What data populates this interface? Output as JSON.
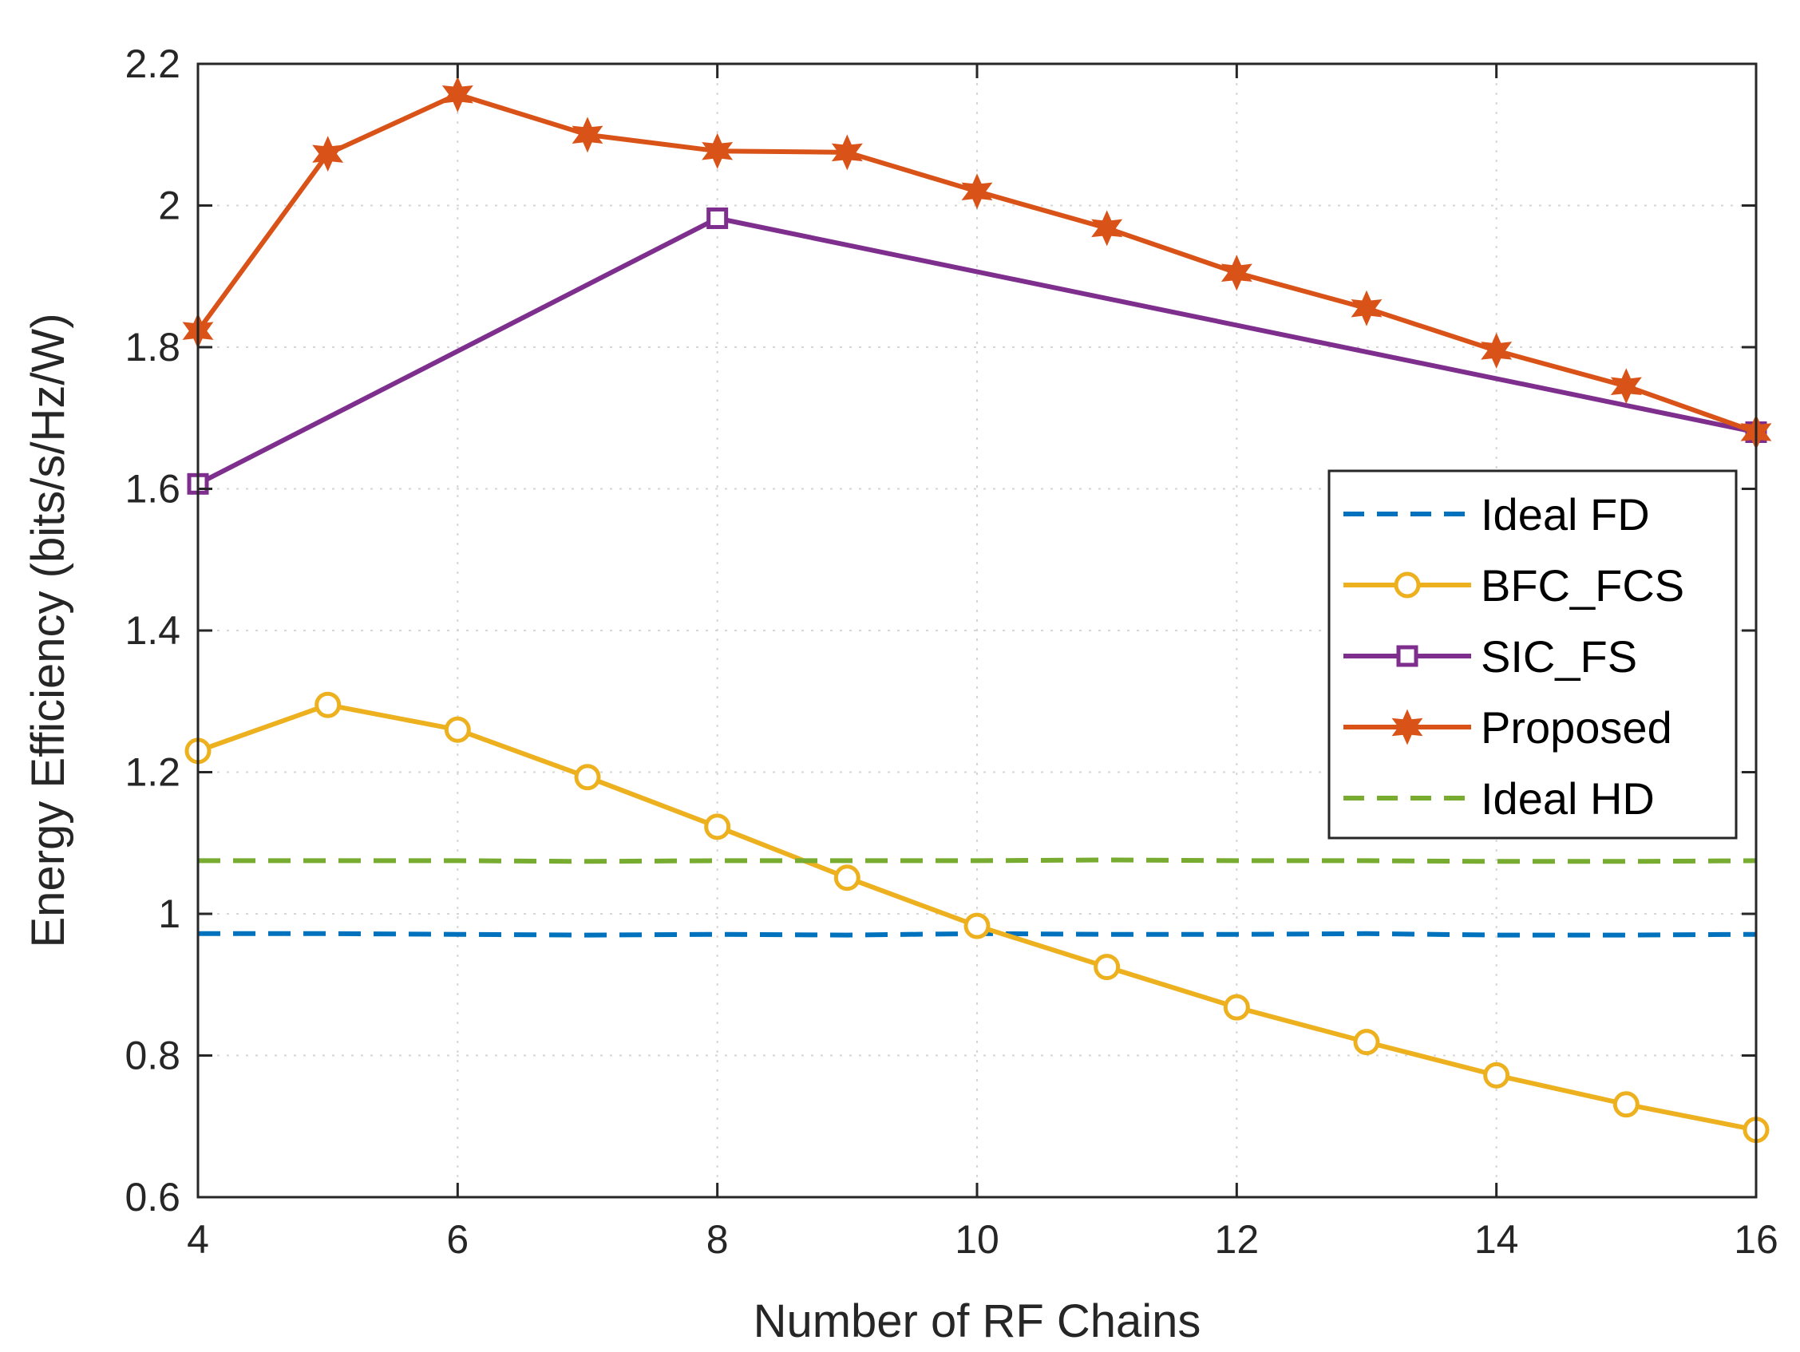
{
  "chart_data": {
    "type": "line",
    "title": "",
    "xlabel": "Number of RF Chains",
    "ylabel": "Energy Efficiency (bits/s/Hz/W)",
    "xlim": [
      4,
      16
    ],
    "ylim": [
      0.6,
      2.2
    ],
    "xticks": [
      4,
      6,
      8,
      10,
      12,
      14,
      16
    ],
    "yticks": [
      0.6,
      0.8,
      1,
      1.2,
      1.4,
      1.6,
      1.8,
      2,
      2.2
    ],
    "xtick_labels": [
      "4",
      "6",
      "8",
      "10",
      "12",
      "14",
      "16"
    ],
    "ytick_labels": [
      "0.6",
      "0.8",
      "1",
      "1.2",
      "1.4",
      "1.6",
      "1.8",
      "2",
      "2.2"
    ],
    "grid": true,
    "legend_position": "center-right",
    "series": [
      {
        "name": "Ideal FD",
        "color": "#0072BD",
        "style": "dashed",
        "marker": "none",
        "x": [
          4,
          5,
          6,
          7,
          8,
          9,
          10,
          11,
          12,
          13,
          14,
          15,
          16
        ],
        "values": [
          0.972,
          0.972,
          0.971,
          0.97,
          0.971,
          0.97,
          0.972,
          0.971,
          0.971,
          0.972,
          0.97,
          0.97,
          0.971
        ]
      },
      {
        "name": "BFC_FCS",
        "color": "#EDB120",
        "style": "solid",
        "marker": "circle",
        "x": [
          4,
          5,
          6,
          7,
          8,
          9,
          10,
          11,
          12,
          13,
          14,
          15,
          16
        ],
        "values": [
          1.23,
          1.295,
          1.26,
          1.193,
          1.123,
          1.051,
          0.983,
          0.925,
          0.868,
          0.819,
          0.772,
          0.731,
          0.695
        ]
      },
      {
        "name": "SIC_FS",
        "color": "#7E2F8E",
        "style": "solid",
        "marker": "square",
        "x": [
          4,
          8,
          16
        ],
        "values": [
          1.607,
          1.982,
          1.68
        ]
      },
      {
        "name": "Proposed",
        "color": "#D95319",
        "style": "solid",
        "marker": "hexagram",
        "x": [
          4,
          5,
          6,
          7,
          8,
          9,
          10,
          11,
          12,
          13,
          14,
          15,
          16
        ],
        "values": [
          1.823,
          2.073,
          2.157,
          2.1,
          2.077,
          2.075,
          2.02,
          1.968,
          1.905,
          1.855,
          1.795,
          1.745,
          1.68
        ]
      },
      {
        "name": "Ideal HD",
        "color": "#77AC30",
        "style": "dashed",
        "marker": "none",
        "x": [
          4,
          5,
          6,
          7,
          8,
          9,
          10,
          11,
          12,
          13,
          14,
          15,
          16
        ],
        "values": [
          1.075,
          1.075,
          1.075,
          1.074,
          1.075,
          1.075,
          1.075,
          1.076,
          1.075,
          1.075,
          1.074,
          1.074,
          1.075
        ]
      }
    ]
  }
}
